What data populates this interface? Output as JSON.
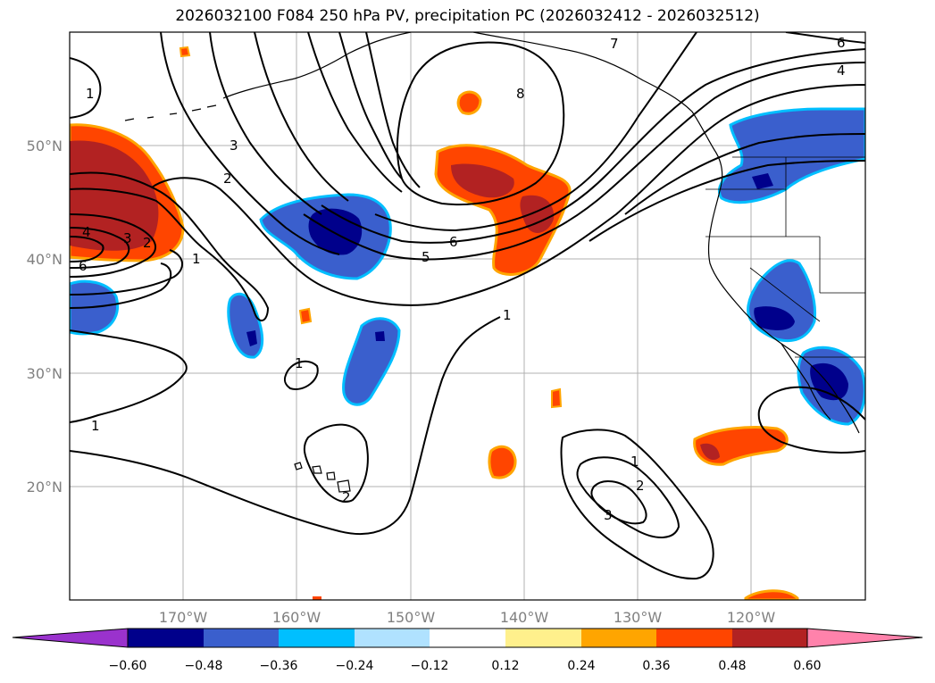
{
  "title": "2026032100 F084 250 hPa PV, precipitation PC (2026032412 - 2026032512)",
  "axes": {
    "lat_labels": [
      "50°N",
      "40°N",
      "30°N",
      "20°N"
    ],
    "lon_labels": [
      "170°W",
      "160°W",
      "150°W",
      "140°W",
      "130°W",
      "120°W"
    ],
    "gridline_color": "#b0b0b0"
  },
  "colorbar": {
    "ticks": [
      "−0.60",
      "−0.48",
      "−0.36",
      "−0.24",
      "−0.12",
      "0.12",
      "0.24",
      "0.36",
      "0.48",
      "0.60"
    ],
    "colors": [
      "#9a32cd",
      "#00008b",
      "#3a5fcd",
      "#00bfff",
      "#b0e2ff",
      "#ffffff",
      "#fff08c",
      "#ffa500",
      "#ff4500",
      "#b22222",
      "#ff82ab"
    ]
  },
  "contour_labels": {
    "l1": "1",
    "l2": "1",
    "l3": "1",
    "l4": "1",
    "l5": "1",
    "l6": "1",
    "l7": "2",
    "l8": "2",
    "l9": "2",
    "l10": "2",
    "l11": "3",
    "l12": "3",
    "l13": "3",
    "l14": "4",
    "l15": "4",
    "l16": "5",
    "l17": "6",
    "l18": "6",
    "l19": "6",
    "l20": "7",
    "l21": "8"
  }
}
